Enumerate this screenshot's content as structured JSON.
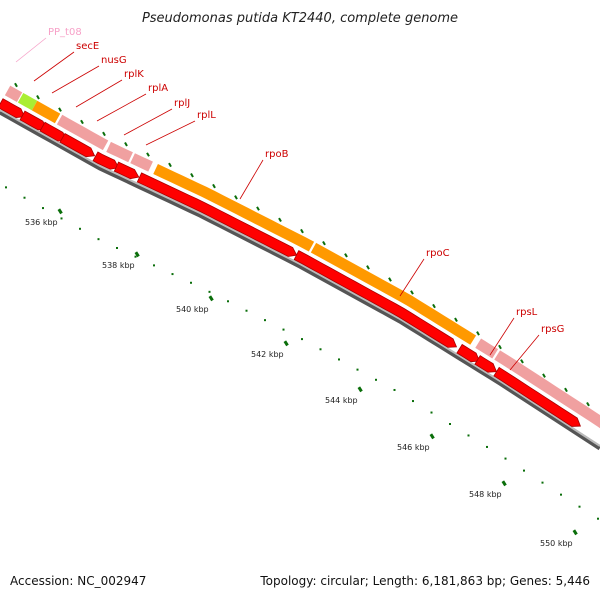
{
  "title": "Pseudomonas putida KT2440, complete genome",
  "footer": {
    "accession": "Accession: NC_002947",
    "topology": "Topology: circular; Length: 6,181,863 bp; Genes: 5,446"
  },
  "colors": {
    "gene_label": "#cc0000",
    "trna_label": "#f7a1c8",
    "cds_dark": "#ff0000",
    "gene_pink": "#f0a0a0",
    "gene_orange": "#ff9900",
    "trna_green": "#aaee33",
    "gc_skew_tick": "#0a6e0a",
    "backbone": "#777777"
  },
  "tick_labels": [
    "536 kbp",
    "538 kbp",
    "540 kbp",
    "542 kbp",
    "544 kbp",
    "546 kbp",
    "548 kbp",
    "550 kbp"
  ],
  "genes": [
    {
      "name": "PP_t08",
      "type": "tRNA"
    },
    {
      "name": "secE",
      "type": "CDS"
    },
    {
      "name": "nusG",
      "type": "CDS"
    },
    {
      "name": "rplK",
      "type": "CDS"
    },
    {
      "name": "rplA",
      "type": "CDS"
    },
    {
      "name": "rplJ",
      "type": "CDS"
    },
    {
      "name": "rplL",
      "type": "CDS"
    },
    {
      "name": "rpoB",
      "type": "CDS"
    },
    {
      "name": "rpoC",
      "type": "CDS"
    },
    {
      "name": "rpsL",
      "type": "CDS"
    },
    {
      "name": "rpsG",
      "type": "CDS"
    }
  ]
}
